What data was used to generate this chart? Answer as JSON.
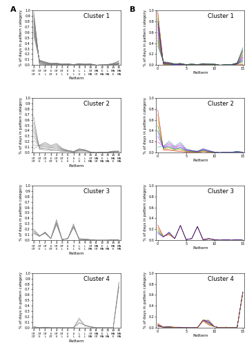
{
  "patterns": [
    0,
    1,
    2,
    3,
    4,
    5,
    6,
    7,
    8,
    9,
    10,
    11,
    12,
    13,
    14,
    15
  ],
  "xtick_labels_top": [
    "OT",
    "OT",
    "OT",
    "E",
    "OT",
    "OT",
    "E",
    "E",
    "L",
    "L",
    "OT",
    "MA",
    "E",
    "L",
    "MA",
    "MA"
  ],
  "xtick_labels_bot": [
    "OT",
    "E",
    "L",
    "OT",
    "E",
    "L",
    "E",
    "L",
    "E",
    "L",
    "MA",
    "OT",
    "MA",
    "MA",
    "E",
    "MA"
  ],
  "xlabel": "Pattern",
  "ylabel": "% of days in pattern category",
  "cluster1_obs": [
    [
      0.97,
      0.01,
      0.0,
      0.0,
      0.0,
      0.0,
      0.0,
      0.0,
      0.0,
      0.0,
      0.0,
      0.0,
      0.0,
      0.0,
      0.0,
      0.02
    ],
    [
      0.93,
      0.02,
      0.01,
      0.0,
      0.0,
      0.0,
      0.01,
      0.0,
      0.0,
      0.0,
      0.0,
      0.0,
      0.0,
      0.0,
      0.0,
      0.03
    ],
    [
      0.9,
      0.03,
      0.01,
      0.01,
      0.01,
      0.0,
      0.0,
      0.0,
      0.01,
      0.0,
      0.0,
      0.0,
      0.0,
      0.0,
      0.01,
      0.02
    ],
    [
      0.87,
      0.04,
      0.02,
      0.01,
      0.01,
      0.01,
      0.01,
      0.0,
      0.01,
      0.0,
      0.01,
      0.0,
      0.0,
      0.0,
      0.01,
      0.01
    ],
    [
      0.83,
      0.05,
      0.02,
      0.01,
      0.01,
      0.01,
      0.01,
      0.0,
      0.01,
      0.01,
      0.01,
      0.0,
      0.0,
      0.0,
      0.01,
      0.02
    ],
    [
      0.8,
      0.05,
      0.03,
      0.01,
      0.02,
      0.01,
      0.01,
      0.01,
      0.01,
      0.01,
      0.01,
      0.0,
      0.0,
      0.0,
      0.01,
      0.02
    ],
    [
      0.77,
      0.06,
      0.03,
      0.02,
      0.02,
      0.01,
      0.01,
      0.01,
      0.01,
      0.01,
      0.01,
      0.0,
      0.0,
      0.0,
      0.01,
      0.03
    ],
    [
      0.73,
      0.07,
      0.04,
      0.02,
      0.02,
      0.01,
      0.01,
      0.01,
      0.01,
      0.01,
      0.01,
      0.0,
      0.0,
      0.0,
      0.02,
      0.03
    ],
    [
      0.7,
      0.07,
      0.04,
      0.02,
      0.02,
      0.01,
      0.02,
      0.01,
      0.02,
      0.01,
      0.01,
      0.0,
      0.0,
      0.0,
      0.02,
      0.04
    ],
    [
      0.67,
      0.08,
      0.04,
      0.02,
      0.03,
      0.01,
      0.02,
      0.01,
      0.02,
      0.01,
      0.01,
      0.0,
      0.0,
      0.01,
      0.02,
      0.03
    ],
    [
      0.63,
      0.08,
      0.05,
      0.02,
      0.03,
      0.01,
      0.02,
      0.01,
      0.02,
      0.01,
      0.02,
      0.0,
      0.0,
      0.01,
      0.02,
      0.05
    ],
    [
      0.6,
      0.08,
      0.05,
      0.03,
      0.03,
      0.02,
      0.02,
      0.01,
      0.02,
      0.01,
      0.02,
      0.0,
      0.0,
      0.01,
      0.03,
      0.07
    ],
    [
      0.57,
      0.09,
      0.05,
      0.03,
      0.03,
      0.02,
      0.02,
      0.01,
      0.02,
      0.02,
      0.02,
      0.0,
      0.01,
      0.01,
      0.03,
      0.07
    ],
    [
      0.53,
      0.09,
      0.06,
      0.03,
      0.04,
      0.02,
      0.02,
      0.01,
      0.03,
      0.02,
      0.02,
      0.0,
      0.01,
      0.01,
      0.03,
      0.08
    ]
  ],
  "cluster2_obs": [
    [
      0.65,
      0.06,
      0.05,
      0.04,
      0.04,
      0.02,
      0.02,
      0.01,
      0.02,
      0.02,
      0.01,
      0.0,
      0.01,
      0.01,
      0.02,
      0.02
    ],
    [
      0.55,
      0.07,
      0.07,
      0.05,
      0.05,
      0.03,
      0.02,
      0.01,
      0.03,
      0.03,
      0.01,
      0.0,
      0.01,
      0.01,
      0.03,
      0.03
    ],
    [
      0.46,
      0.08,
      0.09,
      0.06,
      0.07,
      0.04,
      0.03,
      0.02,
      0.04,
      0.04,
      0.01,
      0.0,
      0.01,
      0.01,
      0.02,
      0.02
    ],
    [
      0.38,
      0.1,
      0.11,
      0.08,
      0.09,
      0.05,
      0.03,
      0.02,
      0.05,
      0.04,
      0.01,
      0.0,
      0.01,
      0.01,
      0.02,
      0.02
    ],
    [
      0.3,
      0.11,
      0.13,
      0.09,
      0.11,
      0.06,
      0.03,
      0.02,
      0.05,
      0.05,
      0.01,
      0.0,
      0.01,
      0.01,
      0.02,
      0.02
    ],
    [
      0.22,
      0.12,
      0.15,
      0.1,
      0.13,
      0.06,
      0.04,
      0.02,
      0.06,
      0.05,
      0.01,
      0.0,
      0.01,
      0.01,
      0.02,
      0.02
    ],
    [
      0.14,
      0.13,
      0.17,
      0.12,
      0.15,
      0.07,
      0.04,
      0.02,
      0.07,
      0.05,
      0.01,
      0.0,
      0.01,
      0.01,
      0.01,
      0.02
    ],
    [
      0.07,
      0.14,
      0.19,
      0.13,
      0.17,
      0.08,
      0.04,
      0.02,
      0.07,
      0.05,
      0.01,
      0.0,
      0.01,
      0.0,
      0.01,
      0.01
    ]
  ],
  "cluster3_obs": [
    [
      0.2,
      0.08,
      0.12,
      0.03,
      0.38,
      0.01,
      0.03,
      0.3,
      0.0,
      0.01,
      0.0,
      0.0,
      0.0,
      0.0,
      0.0,
      0.0
    ],
    [
      0.18,
      0.08,
      0.13,
      0.03,
      0.35,
      0.01,
      0.03,
      0.28,
      0.0,
      0.01,
      0.0,
      0.0,
      0.0,
      0.0,
      0.0,
      0.0
    ],
    [
      0.16,
      0.08,
      0.14,
      0.03,
      0.32,
      0.01,
      0.03,
      0.25,
      0.02,
      0.01,
      0.01,
      0.0,
      0.0,
      0.0,
      0.01,
      0.0
    ],
    [
      0.14,
      0.07,
      0.14,
      0.03,
      0.32,
      0.01,
      0.03,
      0.25,
      0.02,
      0.02,
      0.01,
      0.0,
      0.0,
      0.0,
      0.01,
      0.0
    ],
    [
      0.13,
      0.07,
      0.15,
      0.03,
      0.3,
      0.01,
      0.03,
      0.25,
      0.02,
      0.02,
      0.01,
      0.0,
      0.0,
      0.0,
      0.01,
      0.01
    ],
    [
      0.12,
      0.07,
      0.15,
      0.03,
      0.28,
      0.01,
      0.03,
      0.23,
      0.03,
      0.02,
      0.01,
      0.0,
      0.0,
      0.0,
      0.01,
      0.01
    ]
  ],
  "cluster4_obs": [
    [
      0.02,
      0.0,
      0.01,
      0.0,
      0.0,
      0.0,
      0.0,
      0.0,
      0.18,
      0.03,
      0.02,
      0.0,
      0.0,
      0.0,
      0.0,
      0.74
    ],
    [
      0.02,
      0.0,
      0.01,
      0.0,
      0.0,
      0.0,
      0.0,
      0.0,
      0.15,
      0.04,
      0.02,
      0.0,
      0.0,
      0.0,
      0.0,
      0.76
    ],
    [
      0.01,
      0.0,
      0.01,
      0.0,
      0.0,
      0.0,
      0.0,
      0.0,
      0.1,
      0.05,
      0.02,
      0.0,
      0.0,
      0.0,
      0.0,
      0.81
    ],
    [
      0.01,
      0.0,
      0.01,
      0.0,
      0.0,
      0.0,
      0.0,
      0.0,
      0.08,
      0.05,
      0.01,
      0.0,
      0.0,
      0.0,
      0.0,
      0.84
    ]
  ],
  "cluster1_sim": [
    [
      0.98,
      0.01,
      0.0,
      0.0,
      0.0,
      0.0,
      0.0,
      0.0,
      0.0,
      0.0,
      0.0,
      0.0,
      0.0,
      0.0,
      0.0,
      0.01
    ],
    [
      0.95,
      0.01,
      0.01,
      0.0,
      0.0,
      0.0,
      0.0,
      0.0,
      0.0,
      0.0,
      0.0,
      0.0,
      0.0,
      0.0,
      0.01,
      0.02
    ],
    [
      0.9,
      0.02,
      0.01,
      0.0,
      0.01,
      0.0,
      0.0,
      0.0,
      0.0,
      0.0,
      0.0,
      0.0,
      0.0,
      0.0,
      0.01,
      0.05
    ],
    [
      0.85,
      0.02,
      0.01,
      0.01,
      0.01,
      0.0,
      0.0,
      0.0,
      0.01,
      0.0,
      0.0,
      0.0,
      0.0,
      0.0,
      0.02,
      0.07
    ],
    [
      0.8,
      0.03,
      0.02,
      0.01,
      0.01,
      0.0,
      0.0,
      0.0,
      0.01,
      0.0,
      0.01,
      0.0,
      0.0,
      0.0,
      0.02,
      0.09
    ],
    [
      0.75,
      0.03,
      0.02,
      0.01,
      0.01,
      0.0,
      0.01,
      0.0,
      0.01,
      0.01,
      0.01,
      0.0,
      0.0,
      0.0,
      0.02,
      0.12
    ],
    [
      0.7,
      0.04,
      0.02,
      0.01,
      0.01,
      0.01,
      0.01,
      0.0,
      0.01,
      0.01,
      0.01,
      0.0,
      0.0,
      0.01,
      0.02,
      0.14
    ],
    [
      0.65,
      0.04,
      0.03,
      0.01,
      0.02,
      0.01,
      0.01,
      0.01,
      0.01,
      0.01,
      0.01,
      0.0,
      0.0,
      0.01,
      0.02,
      0.16
    ],
    [
      0.6,
      0.04,
      0.03,
      0.02,
      0.02,
      0.01,
      0.01,
      0.01,
      0.02,
      0.01,
      0.01,
      0.0,
      0.0,
      0.01,
      0.03,
      0.18
    ],
    [
      0.55,
      0.05,
      0.03,
      0.02,
      0.02,
      0.01,
      0.01,
      0.01,
      0.02,
      0.01,
      0.01,
      0.0,
      0.01,
      0.01,
      0.03,
      0.21
    ],
    [
      0.5,
      0.05,
      0.04,
      0.02,
      0.02,
      0.01,
      0.01,
      0.01,
      0.02,
      0.01,
      0.01,
      0.0,
      0.01,
      0.01,
      0.03,
      0.25
    ],
    [
      0.45,
      0.05,
      0.04,
      0.02,
      0.03,
      0.01,
      0.02,
      0.01,
      0.02,
      0.02,
      0.01,
      0.0,
      0.01,
      0.01,
      0.04,
      0.26
    ],
    [
      0.4,
      0.06,
      0.04,
      0.02,
      0.03,
      0.01,
      0.02,
      0.01,
      0.02,
      0.02,
      0.02,
      0.0,
      0.01,
      0.01,
      0.04,
      0.29
    ],
    [
      0.35,
      0.06,
      0.05,
      0.02,
      0.03,
      0.01,
      0.02,
      0.01,
      0.03,
      0.02,
      0.02,
      0.0,
      0.01,
      0.01,
      0.04,
      0.32
    ]
  ],
  "cluster2_sim": [
    [
      0.78,
      0.05,
      0.04,
      0.03,
      0.02,
      0.01,
      0.01,
      0.0,
      0.02,
      0.01,
      0.01,
      0.0,
      0.01,
      0.01,
      0.01,
      0.01
    ],
    [
      0.7,
      0.06,
      0.06,
      0.04,
      0.04,
      0.02,
      0.01,
      0.01,
      0.02,
      0.01,
      0.01,
      0.0,
      0.01,
      0.01,
      0.01,
      0.01
    ],
    [
      0.6,
      0.07,
      0.08,
      0.05,
      0.06,
      0.02,
      0.02,
      0.01,
      0.03,
      0.01,
      0.01,
      0.0,
      0.01,
      0.01,
      0.01,
      0.01
    ],
    [
      0.5,
      0.08,
      0.1,
      0.06,
      0.08,
      0.03,
      0.02,
      0.01,
      0.04,
      0.02,
      0.01,
      0.0,
      0.01,
      0.01,
      0.02,
      0.01
    ],
    [
      0.4,
      0.09,
      0.12,
      0.07,
      0.1,
      0.04,
      0.03,
      0.02,
      0.05,
      0.02,
      0.01,
      0.0,
      0.01,
      0.01,
      0.02,
      0.01
    ],
    [
      0.3,
      0.1,
      0.15,
      0.09,
      0.13,
      0.05,
      0.03,
      0.02,
      0.06,
      0.03,
      0.01,
      0.0,
      0.01,
      0.01,
      0.01,
      0.01
    ],
    [
      0.2,
      0.11,
      0.18,
      0.1,
      0.16,
      0.06,
      0.04,
      0.02,
      0.07,
      0.04,
      0.01,
      0.0,
      0.01,
      0.01,
      0.01,
      0.01
    ],
    [
      0.1,
      0.12,
      0.21,
      0.12,
      0.19,
      0.07,
      0.04,
      0.03,
      0.07,
      0.04,
      0.01,
      0.0,
      0.01,
      0.01,
      0.01,
      0.01
    ]
  ],
  "cluster3_sim": [
    [
      0.28,
      0.07,
      0.1,
      0.03,
      0.27,
      0.01,
      0.03,
      0.25,
      0.0,
      0.02,
      0.01,
      0.0,
      0.01,
      0.0,
      0.01,
      0.0
    ],
    [
      0.24,
      0.07,
      0.11,
      0.03,
      0.27,
      0.01,
      0.03,
      0.25,
      0.0,
      0.02,
      0.01,
      0.0,
      0.01,
      0.0,
      0.01,
      0.0
    ],
    [
      0.21,
      0.07,
      0.12,
      0.03,
      0.27,
      0.01,
      0.03,
      0.25,
      0.01,
      0.02,
      0.01,
      0.0,
      0.01,
      0.0,
      0.01,
      0.0
    ],
    [
      0.18,
      0.06,
      0.13,
      0.03,
      0.27,
      0.01,
      0.03,
      0.25,
      0.01,
      0.03,
      0.01,
      0.0,
      0.01,
      0.0,
      0.01,
      0.0
    ],
    [
      0.15,
      0.06,
      0.14,
      0.03,
      0.27,
      0.01,
      0.03,
      0.25,
      0.01,
      0.03,
      0.01,
      0.0,
      0.01,
      0.0,
      0.01,
      0.0
    ],
    [
      0.12,
      0.06,
      0.15,
      0.03,
      0.27,
      0.01,
      0.03,
      0.25,
      0.01,
      0.03,
      0.01,
      0.0,
      0.01,
      0.0,
      0.01,
      0.0
    ]
  ],
  "cluster4_sim": [
    [
      0.08,
      0.01,
      0.02,
      0.01,
      0.01,
      0.0,
      0.0,
      0.0,
      0.12,
      0.05,
      0.02,
      0.0,
      0.01,
      0.0,
      0.01,
      0.66
    ],
    [
      0.07,
      0.01,
      0.02,
      0.01,
      0.01,
      0.0,
      0.0,
      0.0,
      0.13,
      0.06,
      0.02,
      0.0,
      0.01,
      0.0,
      0.01,
      0.65
    ],
    [
      0.06,
      0.01,
      0.02,
      0.01,
      0.01,
      0.0,
      0.0,
      0.0,
      0.14,
      0.07,
      0.02,
      0.0,
      0.01,
      0.0,
      0.01,
      0.64
    ],
    [
      0.05,
      0.01,
      0.02,
      0.0,
      0.01,
      0.0,
      0.0,
      0.0,
      0.14,
      0.08,
      0.02,
      0.0,
      0.01,
      0.0,
      0.01,
      0.65
    ],
    [
      0.05,
      0.01,
      0.02,
      0.0,
      0.01,
      0.0,
      0.0,
      0.0,
      0.14,
      0.09,
      0.02,
      0.0,
      0.01,
      0.0,
      0.01,
      0.64
    ],
    [
      0.04,
      0.01,
      0.01,
      0.0,
      0.01,
      0.0,
      0.0,
      0.0,
      0.14,
      0.1,
      0.02,
      0.0,
      0.01,
      0.0,
      0.01,
      0.65
    ],
    [
      0.04,
      0.01,
      0.01,
      0.0,
      0.0,
      0.0,
      0.0,
      0.0,
      0.14,
      0.11,
      0.02,
      0.0,
      0.01,
      0.0,
      0.01,
      0.65
    ],
    [
      0.03,
      0.01,
      0.01,
      0.0,
      0.0,
      0.0,
      0.0,
      0.0,
      0.14,
      0.12,
      0.02,
      0.0,
      0.01,
      0.0,
      0.01,
      0.65
    ],
    [
      0.03,
      0.01,
      0.01,
      0.0,
      0.0,
      0.0,
      0.0,
      0.0,
      0.14,
      0.13,
      0.02,
      0.0,
      0.01,
      0.0,
      0.01,
      0.65
    ],
    [
      0.02,
      0.01,
      0.01,
      0.0,
      0.0,
      0.0,
      0.0,
      0.0,
      0.14,
      0.14,
      0.02,
      0.0,
      0.01,
      0.0,
      0.01,
      0.64
    ]
  ],
  "obs_line_color": "#808080",
  "sim_colors": [
    "#cc0000",
    "#dd6600",
    "#aaaa00",
    "#007700",
    "#0000bb",
    "#7700bb",
    "#bb00bb",
    "#009999",
    "#bb0066",
    "#888800",
    "#555555",
    "#005500",
    "#aa5500",
    "#0055aa"
  ],
  "background_color": "#ffffff",
  "cluster_label_fontsize": 6,
  "axis_label_fontsize": 4.5,
  "tick_fontsize": 3.5,
  "panel_label_fontsize": 8
}
